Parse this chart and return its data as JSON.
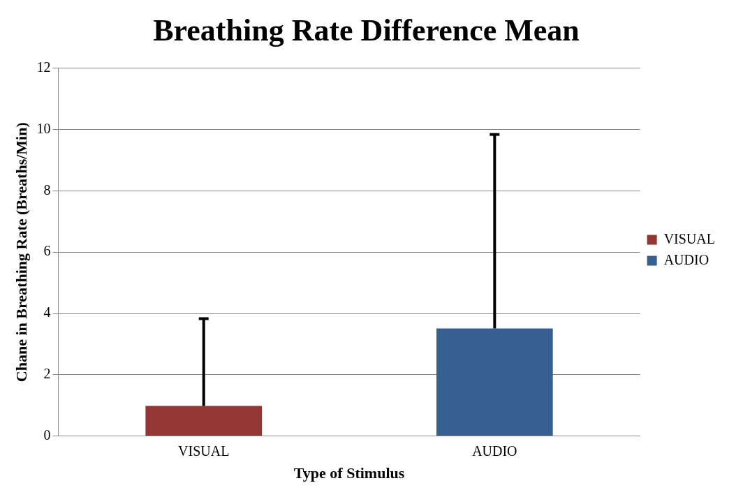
{
  "chart_data": {
    "type": "bar",
    "title": "Breathing Rate Difference Mean",
    "xlabel": "Type of Stimulus",
    "ylabel": "Chane in Breathing Rate (Breaths/Min)",
    "categories": [
      "VISUAL",
      "AUDIO"
    ],
    "series": [
      {
        "name": "VISUAL",
        "color": "#943634",
        "values": [
          0.98,
          null
        ],
        "errors": [
          [
            0.98,
            3.83
          ],
          null
        ]
      },
      {
        "name": "AUDIO",
        "color": "#376092",
        "values": [
          null,
          3.51
        ],
        "errors": [
          null,
          [
            3.51,
            9.84
          ]
        ]
      }
    ],
    "ylim": [
      0,
      12
    ],
    "yticks": [
      0,
      2,
      4,
      6,
      8,
      10,
      12
    ],
    "grid": "y",
    "legend": "right"
  }
}
